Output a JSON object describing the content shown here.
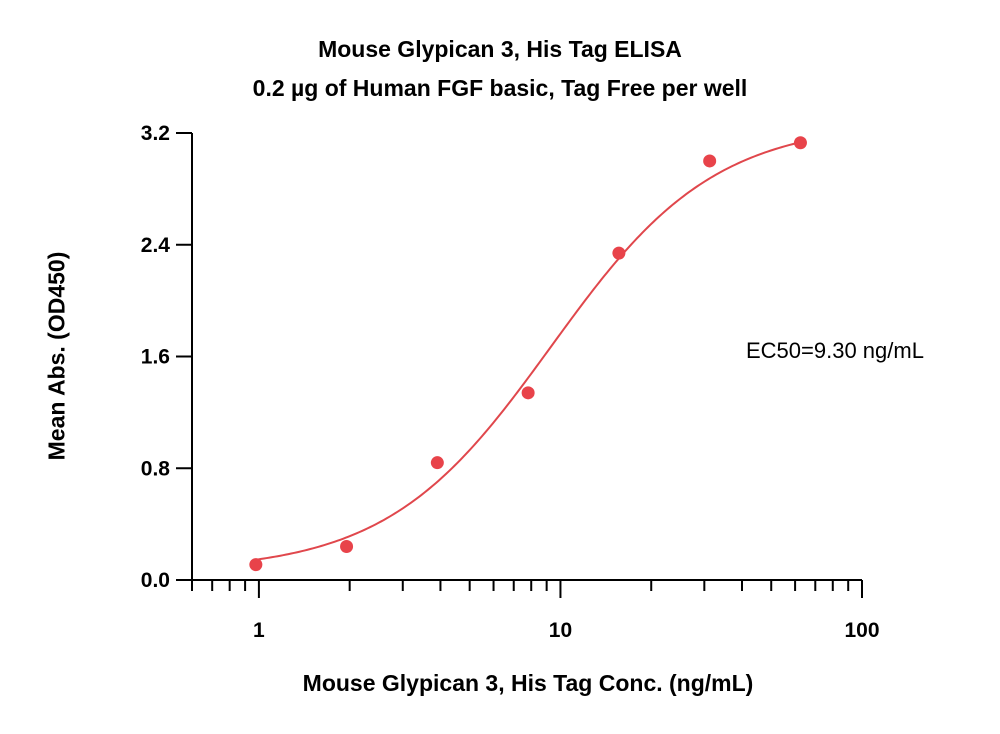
{
  "chart_data": {
    "type": "scatter",
    "title": "Mouse Glypican 3, His Tag ELISA",
    "subtitle": "0.2 µg of Human FGF basic, Tag Free per well",
    "xlabel": "Mouse Glypican 3, His Tag Conc. (ng/mL)",
    "ylabel": "Mean Abs. (OD450)",
    "x_scale": "log",
    "xlim": [
      0.6,
      100
    ],
    "ylim": [
      0,
      3.2
    ],
    "x_ticks": [
      1,
      10,
      100
    ],
    "x_tick_labels": [
      "1",
      "10",
      "100"
    ],
    "y_ticks": [
      0.0,
      0.8,
      1.6,
      2.4,
      3.2
    ],
    "y_tick_labels": [
      "0.0",
      "0.8",
      "1.6",
      "2.4",
      "3.2"
    ],
    "grid": false,
    "colors": {
      "series": "#e8434a",
      "fit": "#e0474c"
    },
    "series": [
      {
        "x": [
          0.977,
          1.953,
          3.906,
          7.813,
          15.625,
          31.25,
          62.5
        ],
        "y": [
          0.11,
          0.24,
          0.84,
          1.34,
          2.34,
          3.0,
          3.13
        ]
      }
    ],
    "fit": {
      "type": "4PL",
      "bottom": 0.06,
      "top": 3.28,
      "ec50": 9.3,
      "hill": 1.6
    },
    "annotation": "EC50=9.30 ng/mL"
  }
}
